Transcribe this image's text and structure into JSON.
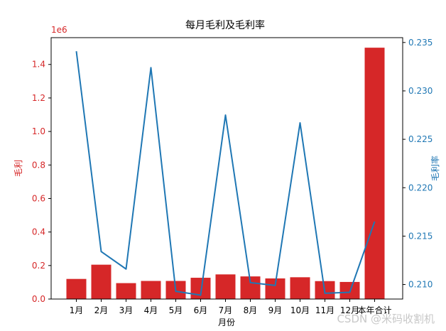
{
  "chart_data": {
    "type": "bar",
    "title": "每月毛利及毛利率",
    "xlabel": "月份",
    "categories": [
      "1月",
      "2月",
      "3月",
      "4月",
      "5月",
      "6月",
      "7月",
      "8月",
      "9月",
      "10月",
      "11月",
      "12月",
      "本年合计"
    ],
    "grid": false,
    "left_axis": {
      "label": "毛利",
      "color": "#d62728",
      "offset_text": "1e6",
      "ylim": [
        0,
        1.56
      ],
      "ticks": [
        "0.0",
        "0.2",
        "0.4",
        "0.6",
        "0.8",
        "1.0",
        "1.2",
        "1.4"
      ]
    },
    "right_axis": {
      "label": "毛利率",
      "color": "#1f77b4",
      "ylim": [
        0.2085,
        0.2355
      ],
      "ticks": [
        "0.210",
        "0.215",
        "0.220",
        "0.225",
        "0.230",
        "0.235"
      ]
    },
    "series": [
      {
        "name": "毛利",
        "kind": "bar",
        "axis": "left",
        "color": "#d62728",
        "values": [
          0.12,
          0.205,
          0.095,
          0.108,
          0.108,
          0.127,
          0.147,
          0.135,
          0.123,
          0.13,
          0.107,
          0.102,
          1.5
        ]
      },
      {
        "name": "毛利率",
        "kind": "line",
        "axis": "right",
        "color": "#1f77b4",
        "values": [
          0.2341,
          0.2134,
          0.2116,
          0.2324,
          0.2093,
          0.2089,
          0.2275,
          0.2102,
          0.2099,
          0.2267,
          0.2091,
          0.2092,
          0.2165
        ]
      }
    ]
  },
  "watermark": "CSDN @米码收割机"
}
